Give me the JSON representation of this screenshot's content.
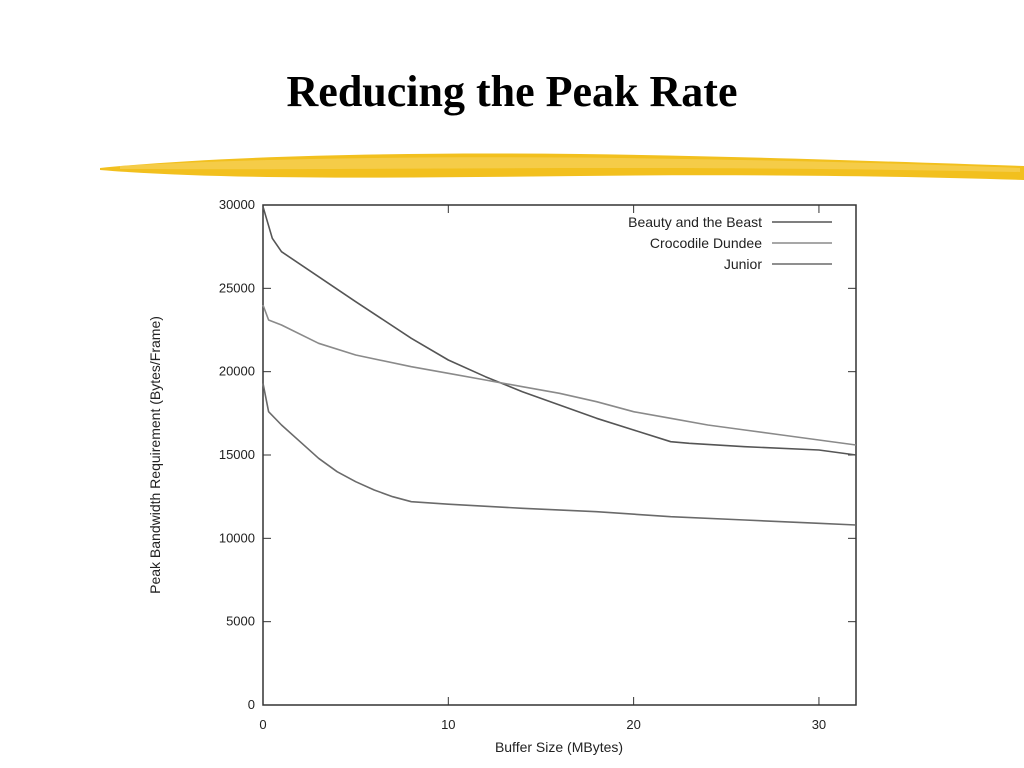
{
  "slide": {
    "title": "Reducing the Peak Rate",
    "accent_color": "#F2C01E"
  },
  "chart_data": {
    "type": "line",
    "xlabel": "Buffer Size (MBytes)",
    "ylabel": "Peak Bandwidth Requirement (Bytes/Frame)",
    "xlim": [
      0,
      32
    ],
    "ylim": [
      0,
      30000
    ],
    "xticks": [
      0,
      10,
      20,
      30
    ],
    "yticks": [
      0,
      5000,
      10000,
      15000,
      20000,
      25000,
      30000
    ],
    "grid": false,
    "legend_position": "top-right",
    "series": [
      {
        "name": "Beauty and the Beast",
        "color": "#555555",
        "points": [
          [
            0,
            29900
          ],
          [
            0.5,
            28000
          ],
          [
            1,
            27200
          ],
          [
            3,
            25700
          ],
          [
            5,
            24200
          ],
          [
            8,
            22000
          ],
          [
            10,
            20700
          ],
          [
            12,
            19700
          ],
          [
            14,
            18800
          ],
          [
            16,
            18000
          ],
          [
            18,
            17200
          ],
          [
            20,
            16500
          ],
          [
            22,
            15800
          ],
          [
            23,
            15700
          ],
          [
            26,
            15500
          ],
          [
            30,
            15300
          ],
          [
            32,
            15000
          ]
        ]
      },
      {
        "name": "Crocodile Dundee",
        "color": "#8a8a8a",
        "points": [
          [
            0,
            24000
          ],
          [
            0.3,
            23100
          ],
          [
            1,
            22800
          ],
          [
            3,
            21700
          ],
          [
            5,
            21000
          ],
          [
            8,
            20300
          ],
          [
            10,
            19900
          ],
          [
            12,
            19500
          ],
          [
            14,
            19100
          ],
          [
            16,
            18700
          ],
          [
            18,
            18200
          ],
          [
            20,
            17600
          ],
          [
            22,
            17200
          ],
          [
            24,
            16800
          ],
          [
            26,
            16500
          ],
          [
            28,
            16200
          ],
          [
            30,
            15900
          ],
          [
            32,
            15600
          ]
        ]
      },
      {
        "name": "Junior",
        "color": "#6a6a6a",
        "points": [
          [
            0,
            19300
          ],
          [
            0.3,
            17600
          ],
          [
            1,
            16800
          ],
          [
            2,
            15800
          ],
          [
            3,
            14800
          ],
          [
            4,
            14000
          ],
          [
            5,
            13400
          ],
          [
            6,
            12900
          ],
          [
            7,
            12500
          ],
          [
            8,
            12200
          ],
          [
            10,
            12050
          ],
          [
            14,
            11800
          ],
          [
            18,
            11600
          ],
          [
            22,
            11300
          ],
          [
            26,
            11100
          ],
          [
            30,
            10900
          ],
          [
            32,
            10800
          ]
        ]
      }
    ]
  }
}
